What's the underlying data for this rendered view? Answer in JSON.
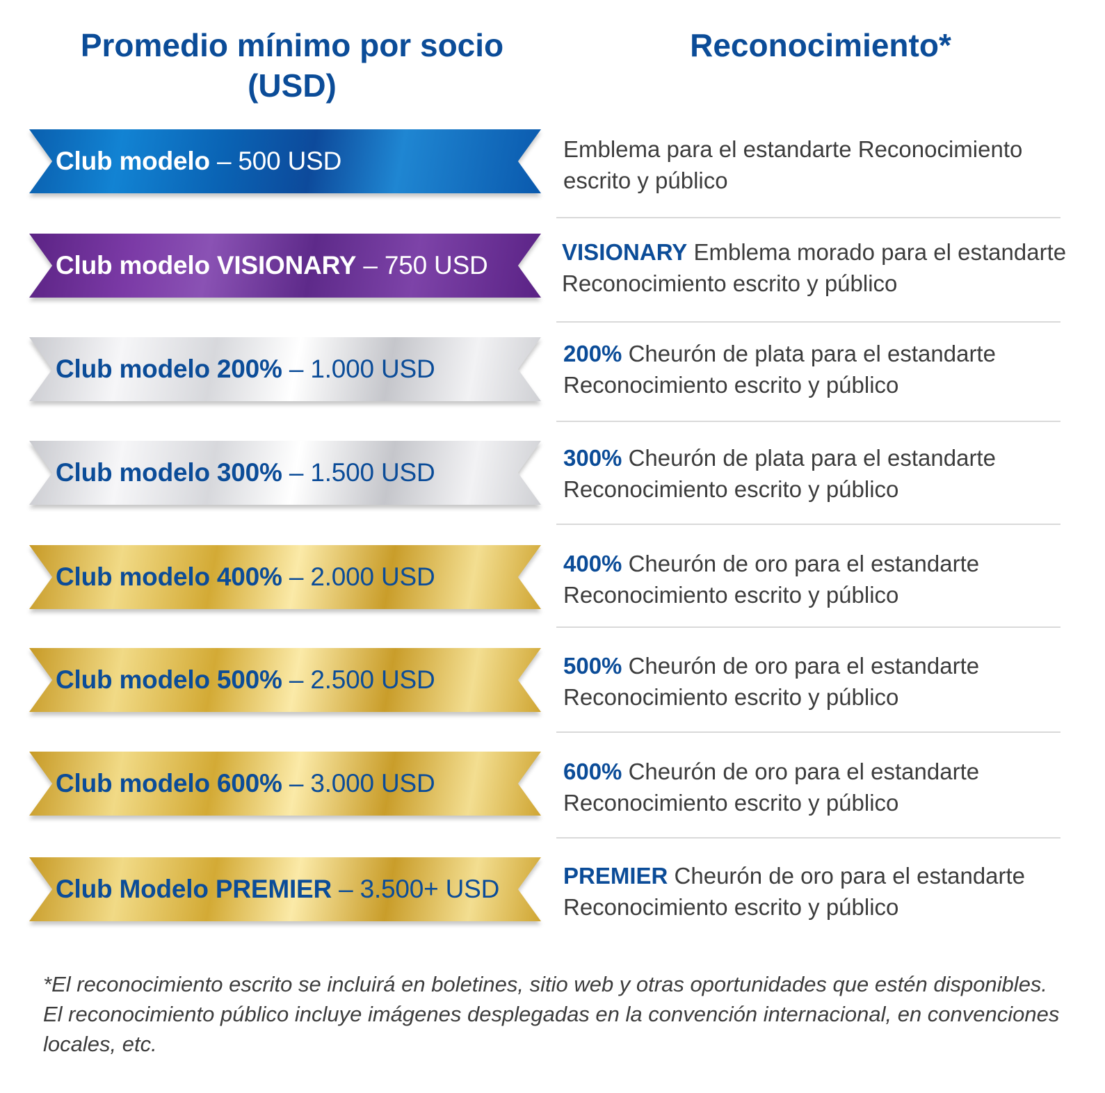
{
  "headers": {
    "left": "Promedio mínimo por socio (USD)",
    "right": "Reconocimiento*"
  },
  "rows": [
    {
      "ribbon_name": "Club modelo",
      "ribbon_price": "– 500 USD",
      "style": "blue",
      "desc_bold": "",
      "desc_text": "Emblema para el estandarte Reconocimiento escrito y público"
    },
    {
      "ribbon_name": "Club modelo VISIONARY",
      "ribbon_price": "– 750 USD",
      "style": "purple",
      "desc_bold": "VISIONARY",
      "desc_text": "Emblema morado para el estandarte Reconocimiento escrito y público"
    },
    {
      "ribbon_name": "Club modelo 200%",
      "ribbon_price": "– 1.000 USD",
      "style": "silver",
      "desc_bold": "200%",
      "desc_text": "Cheurón de plata para el estandarte Reconocimiento escrito y público"
    },
    {
      "ribbon_name": "Club modelo 300%",
      "ribbon_price": "– 1.500 USD",
      "style": "silver",
      "desc_bold": "300%",
      "desc_text": "Cheurón de plata para el estandarte Reconocimiento escrito y público"
    },
    {
      "ribbon_name": "Club modelo 400%",
      "ribbon_price": "– 2.000 USD",
      "style": "gold",
      "desc_bold": "400%",
      "desc_text": "Cheurón de oro para el estandarte Reconocimiento escrito y público"
    },
    {
      "ribbon_name": "Club modelo 500%",
      "ribbon_price": "– 2.500 USD",
      "style": "gold",
      "desc_bold": "500%",
      "desc_text": "Cheurón de oro para el estandarte Reconocimiento escrito y público"
    },
    {
      "ribbon_name": "Club modelo 600%",
      "ribbon_price": "– 3.000 USD",
      "style": "gold",
      "desc_bold": "600%",
      "desc_text": "Cheurón de oro para el estandarte Reconocimiento escrito y público"
    },
    {
      "ribbon_name": "Club Modelo PREMIER",
      "ribbon_price": "– 3.500+ USD",
      "style": "gold",
      "desc_bold": "PREMIER",
      "desc_text": "Cheurón de oro para el estandarte Reconocimiento escrito y público"
    }
  ],
  "footnote": "*El reconocimiento escrito se incluirá en boletines, sitio web y otras oportunidades que estén disponibles. El reconocimiento público incluye imágenes desplegadas en la convención internacional, en convenciones locales, etc.",
  "colors": {
    "title_blue": "#0b4c98",
    "body_text": "#3c3c3c",
    "divider": "#d9d9d9"
  }
}
